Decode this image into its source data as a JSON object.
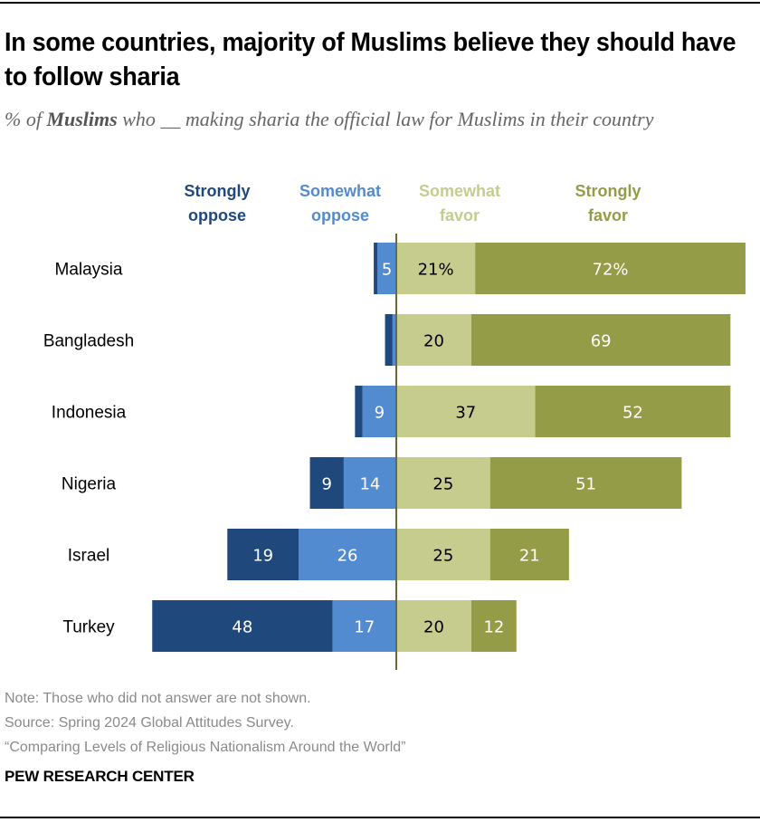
{
  "header": {
    "title": "In some countries, majority of Muslims believe they should have to follow sharia",
    "subtitle_prefix": "% of ",
    "subtitle_bold": "Muslims",
    "subtitle_suffix": " who __ making sharia the official law for Muslims in their country"
  },
  "footer": {
    "note": "Note: Those who did not answer are not shown.",
    "source": "Source: Spring 2024 Global Attitudes Survey.",
    "report": "“Comparing Levels of Religious Nationalism Around the World”",
    "brand": "PEW RESEARCH CENTER"
  },
  "colors": {
    "strongly_oppose": "#1f497d",
    "somewhat_oppose": "#538bd1",
    "somewhat_favor": "#c5cc8e",
    "strongly_favor": "#959c47",
    "zero_line": "#6b6b2a"
  },
  "chart_data": {
    "type": "bar",
    "orientation": "horizontal-diverging",
    "title": "In some countries, majority of Muslims believe they should have to follow sharia",
    "subtitle": "% of Muslims who __ making sharia the official law for Muslims in their country",
    "xlabel": "",
    "ylabel": "",
    "grid": false,
    "legend_placement": "top",
    "categories": [
      "Malaysia",
      "Bangladesh",
      "Indonesia",
      "Nigeria",
      "Israel",
      "Turkey"
    ],
    "series": [
      {
        "name": "Strongly oppose",
        "legend": [
          "Strongly",
          "oppose"
        ],
        "side": "oppose",
        "color_key": "strongly_oppose",
        "values": [
          1,
          2,
          2,
          9,
          19,
          48
        ],
        "labels": [
          "",
          "",
          "",
          "9",
          "19",
          "48"
        ],
        "label_color": "#ffffff"
      },
      {
        "name": "Somewhat oppose",
        "legend": [
          "Somewhat",
          "oppose"
        ],
        "side": "oppose",
        "color_key": "somewhat_oppose",
        "values": [
          5,
          1,
          9,
          14,
          26,
          17
        ],
        "labels": [
          "5",
          "",
          "9",
          "14",
          "26",
          "17"
        ],
        "label_color": "#ffffff"
      },
      {
        "name": "Somewhat favor",
        "legend": [
          "Somewhat",
          "favor"
        ],
        "side": "favor",
        "color_key": "somewhat_favor",
        "values": [
          21,
          20,
          37,
          25,
          25,
          20
        ],
        "labels": [
          "21%",
          "20",
          "37",
          "25",
          "25",
          "20"
        ],
        "label_color": "#000000"
      },
      {
        "name": "Strongly favor",
        "legend": [
          "Strongly",
          "favor"
        ],
        "side": "favor",
        "color_key": "strongly_favor",
        "values": [
          72,
          69,
          52,
          51,
          21,
          12
        ],
        "labels": [
          "72%",
          "69",
          "52",
          "51",
          "21",
          "12"
        ],
        "label_color": "#ffffff"
      }
    ],
    "xlim": [
      -65,
      95
    ]
  }
}
